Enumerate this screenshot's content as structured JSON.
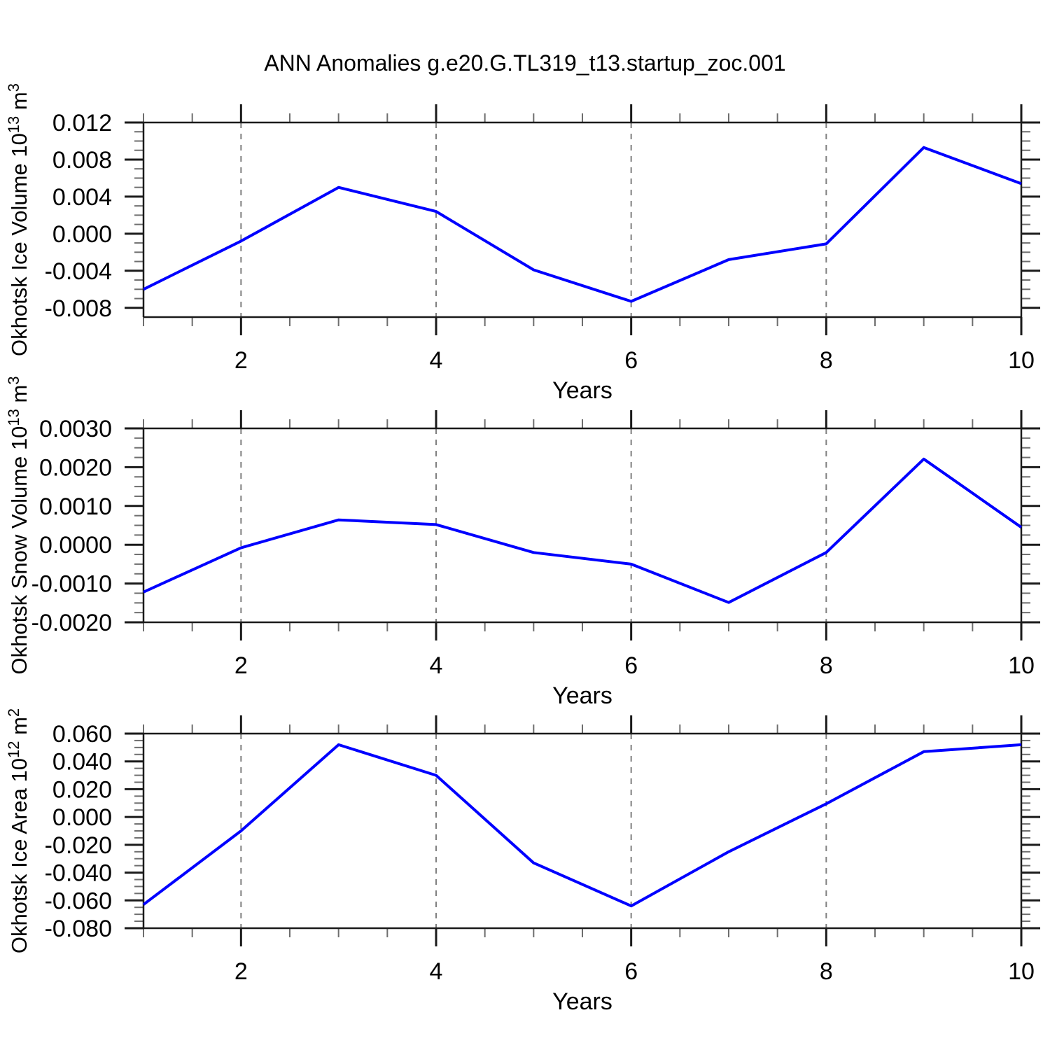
{
  "title": "ANN Anomalies g.e20.G.TL319_t13.startup_zoc.001",
  "style": {
    "line_color": "#0000ff",
    "grid_color": "#808080",
    "axis_color": "#1a1a1a",
    "minor_tick_color": "#6e6e6e",
    "text_color": "#000000"
  },
  "chart_data": [
    {
      "type": "line",
      "ylabel": "Okhotsk Ice Volume 10^13 m^3",
      "ylabel_parts": [
        {
          "t": "Okhotsk Ice Volume 10"
        },
        {
          "t": "13",
          "sup": true
        },
        {
          "t": " m"
        },
        {
          "t": "3",
          "sup": true
        }
      ],
      "xlabel": "Years",
      "x": [
        1,
        2,
        3,
        4,
        5,
        6,
        7,
        8,
        9,
        10
      ],
      "values": [
        -0.006,
        -0.0008,
        0.005,
        0.0024,
        -0.0039,
        -0.0073,
        -0.0028,
        -0.0011,
        0.0093,
        0.0054
      ],
      "xlim": [
        1,
        10
      ],
      "ylim": [
        -0.009,
        0.012
      ],
      "yticks": [
        0.012,
        0.008,
        0.004,
        0.0,
        -0.004,
        -0.008
      ],
      "ytick_labels": [
        "0.012",
        "0.008",
        "0.004",
        "0.000",
        "-0.004",
        "-0.008"
      ],
      "y_minor_step": 0.001,
      "xticks_major": [
        2,
        4,
        6,
        8,
        10
      ],
      "xtick_labels": [
        "2",
        "4",
        "6",
        "8",
        "10"
      ],
      "x_minor_step": 0.5,
      "grid_x": [
        2,
        4,
        6,
        8
      ],
      "grid_on": "vertical-dashed",
      "legend": "none"
    },
    {
      "type": "line",
      "ylabel": "Okhotsk Snow Volume 10^13 m^3",
      "ylabel_parts": [
        {
          "t": "Okhotsk Snow Volume 10"
        },
        {
          "t": "13",
          "sup": true
        },
        {
          "t": " m"
        },
        {
          "t": "3",
          "sup": true
        }
      ],
      "xlabel": "Years",
      "x": [
        1,
        2,
        3,
        4,
        5,
        6,
        7,
        8,
        9,
        10
      ],
      "values": [
        -0.00122,
        -8e-05,
        0.00064,
        0.00052,
        -0.0002,
        -0.0005,
        -0.00149,
        -0.0002,
        0.00221,
        0.00045
      ],
      "xlim": [
        1,
        10
      ],
      "ylim": [
        -0.002,
        0.003
      ],
      "yticks": [
        0.003,
        0.002,
        0.001,
        0.0,
        -0.001,
        -0.002
      ],
      "ytick_labels": [
        "0.0030",
        "0.0020",
        "0.0010",
        "0.0000",
        "-0.0010",
        "-0.0020"
      ],
      "y_minor_step": 0.00025,
      "xticks_major": [
        2,
        4,
        6,
        8,
        10
      ],
      "xtick_labels": [
        "2",
        "4",
        "6",
        "8",
        "10"
      ],
      "x_minor_step": 0.5,
      "grid_x": [
        2,
        4,
        6,
        8
      ],
      "grid_on": "vertical-dashed",
      "legend": "none"
    },
    {
      "type": "line",
      "ylabel": "Okhotsk Ice Area 10^12 m^2",
      "ylabel_parts": [
        {
          "t": "Okhotsk Ice Area 10"
        },
        {
          "t": "12",
          "sup": true
        },
        {
          "t": " m"
        },
        {
          "t": "2",
          "sup": true
        }
      ],
      "xlabel": "Years",
      "x": [
        1,
        2,
        3,
        4,
        5,
        6,
        7,
        8,
        9,
        10
      ],
      "values": [
        -0.063,
        -0.01,
        0.052,
        0.03,
        -0.033,
        -0.064,
        -0.025,
        0.0095,
        0.047,
        0.052
      ],
      "xlim": [
        1,
        10
      ],
      "ylim": [
        -0.08,
        0.06
      ],
      "yticks": [
        0.06,
        0.04,
        0.02,
        0.0,
        -0.02,
        -0.04,
        -0.06,
        -0.08
      ],
      "ytick_labels": [
        "0.060",
        "0.040",
        "0.020",
        "0.000",
        "-0.020",
        "-0.040",
        "-0.060",
        "-0.080"
      ],
      "y_minor_step": 0.005,
      "xticks_major": [
        2,
        4,
        6,
        8,
        10
      ],
      "xtick_labels": [
        "2",
        "4",
        "6",
        "8",
        "10"
      ],
      "x_minor_step": 0.5,
      "grid_x": [
        2,
        4,
        6,
        8
      ],
      "grid_on": "vertical-dashed",
      "legend": "none"
    }
  ]
}
